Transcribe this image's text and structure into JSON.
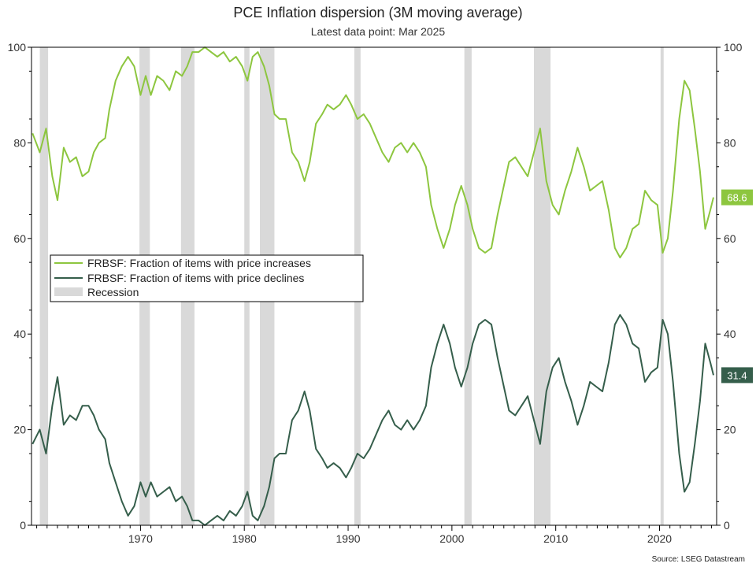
{
  "chart_data": {
    "type": "line",
    "title": "PCE Inflation dispersion (3M moving average)",
    "subtitle": "Latest data point: Mar 2025",
    "source": "Source: LSEG Datastream",
    "x_range": [
      1959.5,
      2025.5
    ],
    "ylim": [
      0,
      100
    ],
    "y_ticks": [
      0,
      20,
      40,
      60,
      80,
      100
    ],
    "x_ticks": [
      1970,
      1980,
      1990,
      2000,
      2010,
      2020
    ],
    "grid": false,
    "legend_position": "middle-left",
    "recession_label": "Recession",
    "recession_color": "#d9d9d9",
    "recessions": [
      [
        1960.3,
        1961.1
      ],
      [
        1969.9,
        1970.9
      ],
      [
        1973.9,
        1975.2
      ],
      [
        1980.0,
        1980.5
      ],
      [
        1981.5,
        1982.9
      ],
      [
        1990.6,
        1991.2
      ],
      [
        2001.2,
        2001.9
      ],
      [
        2007.9,
        2009.5
      ],
      [
        2020.1,
        2020.4
      ]
    ],
    "series": [
      {
        "name": "FRBSF: Fraction of items with price increases",
        "color": "#8dc63f",
        "last_value_label": "68.6",
        "points": [
          [
            1959.6,
            82
          ],
          [
            1960.3,
            78
          ],
          [
            1960.9,
            83
          ],
          [
            1961.5,
            73
          ],
          [
            1962.0,
            68
          ],
          [
            1962.6,
            79
          ],
          [
            1963.2,
            76
          ],
          [
            1963.8,
            77
          ],
          [
            1964.4,
            73
          ],
          [
            1965.0,
            74
          ],
          [
            1965.5,
            78
          ],
          [
            1966.0,
            80
          ],
          [
            1966.6,
            81
          ],
          [
            1967.0,
            87
          ],
          [
            1967.6,
            93
          ],
          [
            1968.2,
            96
          ],
          [
            1968.8,
            98
          ],
          [
            1969.4,
            96
          ],
          [
            1970.0,
            90
          ],
          [
            1970.5,
            94
          ],
          [
            1971.0,
            90
          ],
          [
            1971.6,
            94
          ],
          [
            1972.2,
            93
          ],
          [
            1972.8,
            91
          ],
          [
            1973.4,
            95
          ],
          [
            1974.0,
            94
          ],
          [
            1974.5,
            96
          ],
          [
            1975.0,
            99
          ],
          [
            1975.6,
            99
          ],
          [
            1976.2,
            100
          ],
          [
            1976.8,
            99
          ],
          [
            1977.4,
            98
          ],
          [
            1978.0,
            99
          ],
          [
            1978.6,
            97
          ],
          [
            1979.2,
            98
          ],
          [
            1979.8,
            96
          ],
          [
            1980.3,
            93
          ],
          [
            1980.8,
            98
          ],
          [
            1981.3,
            99
          ],
          [
            1981.9,
            96
          ],
          [
            1982.4,
            92
          ],
          [
            1982.9,
            86
          ],
          [
            1983.4,
            85
          ],
          [
            1984.0,
            85
          ],
          [
            1984.6,
            78
          ],
          [
            1985.2,
            76
          ],
          [
            1985.8,
            72
          ],
          [
            1986.3,
            76
          ],
          [
            1986.9,
            84
          ],
          [
            1987.5,
            86
          ],
          [
            1988.0,
            88
          ],
          [
            1988.6,
            87
          ],
          [
            1989.2,
            88
          ],
          [
            1989.8,
            90
          ],
          [
            1990.3,
            88
          ],
          [
            1990.9,
            85
          ],
          [
            1991.5,
            86
          ],
          [
            1992.1,
            84
          ],
          [
            1992.7,
            81
          ],
          [
            1993.3,
            78
          ],
          [
            1993.9,
            76
          ],
          [
            1994.5,
            79
          ],
          [
            1995.1,
            80
          ],
          [
            1995.7,
            78
          ],
          [
            1996.3,
            80
          ],
          [
            1996.9,
            78
          ],
          [
            1997.5,
            75
          ],
          [
            1998.0,
            67
          ],
          [
            1998.6,
            62
          ],
          [
            1999.2,
            58
          ],
          [
            1999.8,
            62
          ],
          [
            2000.3,
            67
          ],
          [
            2000.9,
            71
          ],
          [
            2001.5,
            67
          ],
          [
            2002.0,
            62
          ],
          [
            2002.6,
            58
          ],
          [
            2003.2,
            57
          ],
          [
            2003.8,
            58
          ],
          [
            2004.4,
            65
          ],
          [
            2005.0,
            71
          ],
          [
            2005.5,
            76
          ],
          [
            2006.1,
            77
          ],
          [
            2006.7,
            75
          ],
          [
            2007.3,
            73
          ],
          [
            2007.9,
            78
          ],
          [
            2008.5,
            83
          ],
          [
            2009.1,
            72
          ],
          [
            2009.7,
            67
          ],
          [
            2010.3,
            65
          ],
          [
            2010.9,
            70
          ],
          [
            2011.5,
            74
          ],
          [
            2012.1,
            79
          ],
          [
            2012.7,
            75
          ],
          [
            2013.3,
            70
          ],
          [
            2013.9,
            71
          ],
          [
            2014.5,
            72
          ],
          [
            2015.1,
            66
          ],
          [
            2015.7,
            58
          ],
          [
            2016.2,
            56
          ],
          [
            2016.8,
            58
          ],
          [
            2017.4,
            62
          ],
          [
            2018.0,
            63
          ],
          [
            2018.6,
            70
          ],
          [
            2019.2,
            68
          ],
          [
            2019.8,
            67
          ],
          [
            2020.3,
            57
          ],
          [
            2020.8,
            60
          ],
          [
            2021.3,
            70
          ],
          [
            2021.9,
            85
          ],
          [
            2022.4,
            93
          ],
          [
            2022.9,
            91
          ],
          [
            2023.4,
            83
          ],
          [
            2023.9,
            74
          ],
          [
            2024.4,
            62
          ],
          [
            2024.9,
            66
          ],
          [
            2025.2,
            68.6
          ]
        ]
      },
      {
        "name": "FRBSF: Fraction of items with price declines",
        "color": "#355e4b",
        "last_value_label": "31.4",
        "points": [
          [
            1959.6,
            17
          ],
          [
            1960.3,
            20
          ],
          [
            1960.9,
            15
          ],
          [
            1961.5,
            25
          ],
          [
            1962.0,
            31
          ],
          [
            1962.6,
            21
          ],
          [
            1963.2,
            23
          ],
          [
            1963.8,
            22
          ],
          [
            1964.4,
            25
          ],
          [
            1965.0,
            25
          ],
          [
            1965.5,
            23
          ],
          [
            1966.0,
            20
          ],
          [
            1966.6,
            18
          ],
          [
            1967.0,
            13
          ],
          [
            1967.6,
            9
          ],
          [
            1968.2,
            5
          ],
          [
            1968.8,
            2
          ],
          [
            1969.4,
            4
          ],
          [
            1970.0,
            9
          ],
          [
            1970.5,
            6
          ],
          [
            1971.0,
            9
          ],
          [
            1971.6,
            6
          ],
          [
            1972.2,
            7
          ],
          [
            1972.8,
            8
          ],
          [
            1973.4,
            5
          ],
          [
            1974.0,
            6
          ],
          [
            1974.5,
            4
          ],
          [
            1975.0,
            1
          ],
          [
            1975.6,
            1
          ],
          [
            1976.2,
            0
          ],
          [
            1976.8,
            1
          ],
          [
            1977.4,
            2
          ],
          [
            1978.0,
            1
          ],
          [
            1978.6,
            3
          ],
          [
            1979.2,
            2
          ],
          [
            1979.8,
            4
          ],
          [
            1980.3,
            7
          ],
          [
            1980.8,
            2
          ],
          [
            1981.3,
            1
          ],
          [
            1981.9,
            4
          ],
          [
            1982.4,
            8
          ],
          [
            1982.9,
            14
          ],
          [
            1983.4,
            15
          ],
          [
            1984.0,
            15
          ],
          [
            1984.6,
            22
          ],
          [
            1985.2,
            24
          ],
          [
            1985.8,
            28
          ],
          [
            1986.3,
            24
          ],
          [
            1986.9,
            16
          ],
          [
            1987.5,
            14
          ],
          [
            1988.0,
            12
          ],
          [
            1988.6,
            13
          ],
          [
            1989.2,
            12
          ],
          [
            1989.8,
            10
          ],
          [
            1990.3,
            12
          ],
          [
            1990.9,
            15
          ],
          [
            1991.5,
            14
          ],
          [
            1992.1,
            16
          ],
          [
            1992.7,
            19
          ],
          [
            1993.3,
            22
          ],
          [
            1993.9,
            24
          ],
          [
            1994.5,
            21
          ],
          [
            1995.1,
            20
          ],
          [
            1995.7,
            22
          ],
          [
            1996.3,
            20
          ],
          [
            1996.9,
            22
          ],
          [
            1997.5,
            25
          ],
          [
            1998.0,
            33
          ],
          [
            1998.6,
            38
          ],
          [
            1999.2,
            42
          ],
          [
            1999.8,
            38
          ],
          [
            2000.3,
            33
          ],
          [
            2000.9,
            29
          ],
          [
            2001.5,
            33
          ],
          [
            2002.0,
            38
          ],
          [
            2002.6,
            42
          ],
          [
            2003.2,
            43
          ],
          [
            2003.8,
            42
          ],
          [
            2004.4,
            35
          ],
          [
            2005.0,
            29
          ],
          [
            2005.5,
            24
          ],
          [
            2006.1,
            23
          ],
          [
            2006.7,
            25
          ],
          [
            2007.3,
            27
          ],
          [
            2007.9,
            22
          ],
          [
            2008.5,
            17
          ],
          [
            2009.1,
            28
          ],
          [
            2009.7,
            33
          ],
          [
            2010.3,
            35
          ],
          [
            2010.9,
            30
          ],
          [
            2011.5,
            26
          ],
          [
            2012.1,
            21
          ],
          [
            2012.7,
            25
          ],
          [
            2013.3,
            30
          ],
          [
            2013.9,
            29
          ],
          [
            2014.5,
            28
          ],
          [
            2015.1,
            34
          ],
          [
            2015.7,
            42
          ],
          [
            2016.2,
            44
          ],
          [
            2016.8,
            42
          ],
          [
            2017.4,
            38
          ],
          [
            2018.0,
            37
          ],
          [
            2018.6,
            30
          ],
          [
            2019.2,
            32
          ],
          [
            2019.8,
            33
          ],
          [
            2020.3,
            43
          ],
          [
            2020.8,
            40
          ],
          [
            2021.3,
            30
          ],
          [
            2021.9,
            15
          ],
          [
            2022.4,
            7
          ],
          [
            2022.9,
            9
          ],
          [
            2023.4,
            17
          ],
          [
            2023.9,
            26
          ],
          [
            2024.4,
            38
          ],
          [
            2024.9,
            34
          ],
          [
            2025.2,
            31.4
          ]
        ]
      }
    ]
  }
}
